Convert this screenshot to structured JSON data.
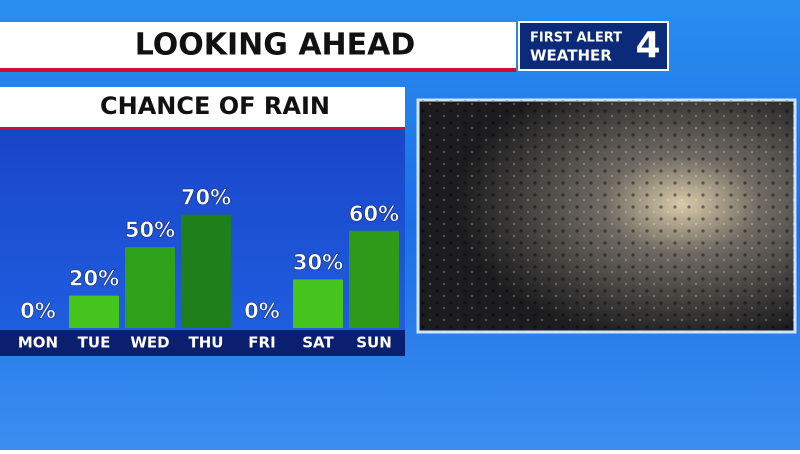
{
  "header": {
    "title": "LOOKING AHEAD",
    "logo": {
      "line1": "FIRST ALERT",
      "line2": "WEATHER",
      "channel": "4"
    }
  },
  "chart_data": {
    "type": "bar",
    "title": "CHANCE OF RAIN",
    "categories": [
      "MON",
      "TUE",
      "WED",
      "THU",
      "FRI",
      "SAT",
      "SUN"
    ],
    "values": [
      0,
      20,
      50,
      70,
      0,
      30,
      60
    ],
    "value_labels": [
      "0%",
      "20%",
      "50%",
      "70%",
      "0%",
      "30%",
      "60%"
    ],
    "colors": [
      "#45c41d",
      "#45c41d",
      "#2ea11a",
      "#1f7f1b",
      "#45c41d",
      "#45c41d",
      "#2e9a1a"
    ]
  }
}
